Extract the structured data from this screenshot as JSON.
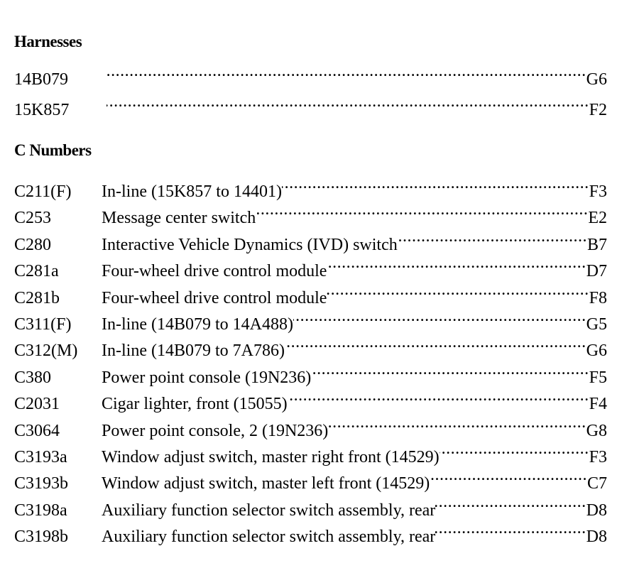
{
  "harnesses": {
    "title": "Harnesses",
    "items": [
      {
        "code": "14B079",
        "ref": "G6"
      },
      {
        "code": "15K857",
        "ref": "F2"
      }
    ]
  },
  "c_numbers": {
    "title": "C Numbers",
    "items": [
      {
        "code": "C211(F)",
        "desc": "In-line (15K857 to 14401)",
        "ref": "F3"
      },
      {
        "code": "C253",
        "desc": "Message center switch",
        "ref": "E2"
      },
      {
        "code": "C280",
        "desc": "Interactive Vehicle Dynamics (IVD) switch ",
        "ref": "B7"
      },
      {
        "code": "C281a",
        "desc": "Four-wheel drive control module",
        "ref": "D7"
      },
      {
        "code": "C281b",
        "desc": "Four-wheel drive control module ",
        "ref": "F8"
      },
      {
        "code": "C311(F)",
        "desc": "In-line (14B079 to 14A488)",
        "ref": "G5"
      },
      {
        "code": "C312(M)",
        "desc": "In-line (14B079 to 7A786)",
        "ref": "G6"
      },
      {
        "code": "C380",
        "desc": "Power point console (19N236)",
        "ref": "F5"
      },
      {
        "code": "C2031",
        "desc": "Cigar lighter, front (15055) ",
        "ref": "F4"
      },
      {
        "code": "C3064",
        "desc": "Power point console, 2 (19N236) ",
        "ref": "G8"
      },
      {
        "code": "C3193a",
        "desc": "Window adjust switch, master right front (14529)",
        "ref": "F3"
      },
      {
        "code": "C3193b",
        "desc": "Window adjust switch, master left front (14529)",
        "ref": "C7"
      },
      {
        "code": "C3198a",
        "desc": "Auxiliary function selector switch assembly, rear ",
        "ref": "D8"
      },
      {
        "code": "C3198b",
        "desc": "Auxiliary function selector switch assembly, rear ",
        "ref": "D8"
      }
    ]
  }
}
